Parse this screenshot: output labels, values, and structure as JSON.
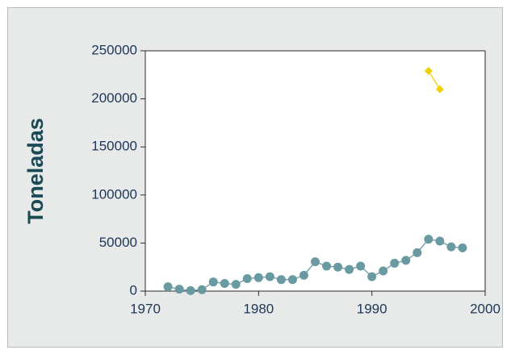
{
  "chart_data": {
    "type": "line",
    "y_label": "Toneladas",
    "x": [
      1972,
      1973,
      1974,
      1975,
      1976,
      1977,
      1978,
      1979,
      1980,
      1981,
      1982,
      1983,
      1984,
      1985,
      1986,
      1987,
      1988,
      1989,
      1990,
      1991,
      1992,
      1993,
      1994,
      1995,
      1996,
      1997,
      1998
    ],
    "series": [
      {
        "color": "#6a9aa1",
        "marker": "circle",
        "values": [
          4500,
          2000,
          500,
          1500,
          9500,
          8000,
          7000,
          13000,
          14000,
          15000,
          12000,
          12000,
          16500,
          30500,
          26000,
          25000,
          22500,
          26000,
          15000,
          21000,
          29000,
          32000,
          40000,
          54000,
          52000,
          46000,
          45000
        ]
      },
      {
        "color": "#f0d000",
        "marker": "diamond",
        "values": [
          null,
          null,
          null,
          null,
          null,
          null,
          null,
          null,
          null,
          null,
          null,
          null,
          null,
          null,
          null,
          null,
          null,
          null,
          null,
          null,
          null,
          null,
          null,
          229000,
          210000,
          null,
          null
        ]
      }
    ],
    "xlim": [
      1970,
      2000
    ],
    "xticks": [
      1970,
      1980,
      1990,
      2000
    ],
    "ylim": [
      0,
      250000
    ],
    "yticks": [
      0,
      50000,
      100000,
      150000,
      200000,
      250000
    ]
  }
}
